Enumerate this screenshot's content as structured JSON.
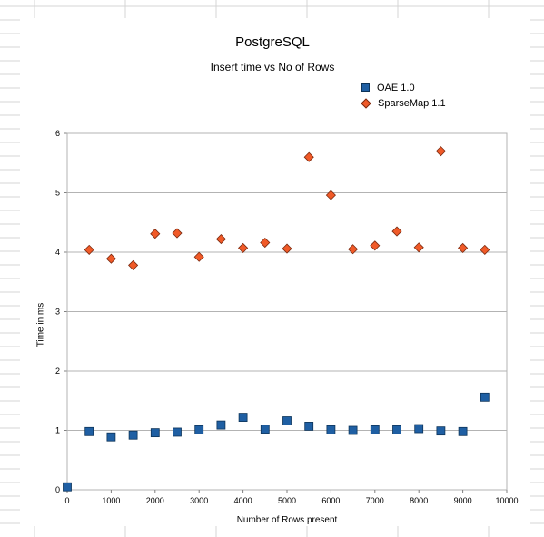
{
  "chart_data": {
    "type": "scatter",
    "title": "PostgreSQL",
    "subtitle": "Insert time vs No of Rows",
    "xlabel": "Number of Rows present",
    "ylabel": "Time in ms",
    "xlim": [
      0,
      10000
    ],
    "ylim": [
      0,
      6
    ],
    "x_ticks": [
      "0",
      "1000",
      "2000",
      "3000",
      "4000",
      "5000",
      "6000",
      "7000",
      "8000",
      "9000",
      "10000"
    ],
    "y_ticks": [
      "0",
      "1",
      "2",
      "3",
      "4",
      "5",
      "6"
    ],
    "grid": "horizontal",
    "legend": "top-right",
    "x": [
      0,
      500,
      1000,
      1500,
      2000,
      2500,
      3000,
      3500,
      4000,
      4500,
      5000,
      5500,
      6000,
      6500,
      7000,
      7500,
      8000,
      8500,
      9000,
      9500
    ],
    "series": [
      {
        "name": "OAE 1.0",
        "marker": "square",
        "color": "#1f5fa3",
        "values": [
          0.05,
          0.98,
          0.89,
          0.92,
          0.96,
          0.97,
          1.01,
          1.09,
          1.22,
          1.02,
          1.16,
          1.07,
          1.01,
          1.0,
          1.01,
          1.01,
          1.03,
          0.99,
          0.98,
          1.56
        ]
      },
      {
        "name": "SparseMap  1.1",
        "marker": "diamond",
        "color": "#f05a28",
        "values": [
          null,
          4.04,
          3.89,
          3.78,
          4.31,
          4.32,
          3.92,
          4.22,
          4.07,
          4.16,
          4.06,
          5.6,
          4.96,
          4.05,
          4.11,
          4.35,
          4.08,
          5.7,
          4.07,
          4.04
        ]
      }
    ]
  }
}
